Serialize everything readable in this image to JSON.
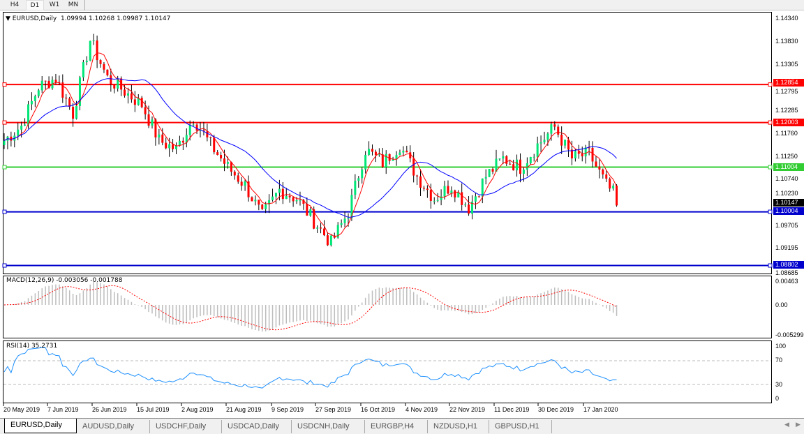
{
  "toolbar": {
    "timeframes": [
      "H4",
      "D1",
      "W1",
      "MN"
    ],
    "active": "D1"
  },
  "main": {
    "symbol": "EURUSD,Daily",
    "ohlc": "1.09994 1.10268 1.09987 1.10147",
    "current_price": "1.10147",
    "price_axis": [
      "1.14340",
      "1.13830",
      "1.13305",
      "1.12795",
      "1.12285",
      "1.11760",
      "1.11250",
      "1.10740",
      "1.10230",
      "1.09705",
      "1.09195",
      "1.08685"
    ],
    "levels": [
      {
        "price": "1.12854",
        "color": "#ff0000"
      },
      {
        "price": "1.12003",
        "color": "#ff0000"
      },
      {
        "price": "1.11004",
        "color": "#32cd32"
      },
      {
        "price": "1.10004",
        "color": "#0000cd"
      },
      {
        "price": "1.08802",
        "color": "#0000cd"
      }
    ],
    "colors": {
      "bull": "#00e676",
      "bear": "#ff0000",
      "ma_fast": "#ff0000",
      "ma_slow": "#0000ff"
    }
  },
  "macd": {
    "title": "MACD(12,26,9) -0.003056 -0.001788",
    "axis": [
      "0.00463",
      "0.00",
      "-0.005299"
    ]
  },
  "rsi": {
    "title": "RSI(14) 35.2731",
    "axis": [
      "100",
      "70",
      "30",
      "0"
    ]
  },
  "dates": [
    "20 May 2019",
    "7 Jun 2019",
    "26 Jun 2019",
    "15 Jul 2019",
    "2 Aug 2019",
    "21 Aug 2019",
    "9 Sep 2019",
    "27 Sep 2019",
    "16 Oct 2019",
    "4 Nov 2019",
    "22 Nov 2019",
    "11 Dec 2019",
    "30 Dec 2019",
    "17 Jan 2020"
  ],
  "tabs": [
    "EURUSD,Daily",
    "AUDUSD,Daily",
    "USDCHF,Daily",
    "USDCAD,Daily",
    "USDCNH,Daily",
    "EURGBP,H4",
    "NZDUSD,H1",
    "GBPUSD,H1"
  ],
  "active_tab": "EURUSD,Daily",
  "chart_data": {
    "type": "candlestick",
    "symbol": "EURUSD",
    "timeframe": "Daily",
    "weekly_closes_from_20_May_2019": [
      1.116,
      1.1193,
      1.128,
      1.13,
      1.122,
      1.1385,
      1.13,
      1.127,
      1.124,
      1.116,
      1.114,
      1.121,
      1.115,
      1.11,
      1.106,
      1.099,
      1.105,
      1.103,
      1.098,
      1.093,
      1.1,
      1.114,
      1.111,
      1.115,
      1.108,
      1.103,
      1.106,
      1.101,
      1.108,
      1.112,
      1.11,
      1.115,
      1.119,
      1.112,
      1.113,
      1.106,
      1.10147
    ],
    "ylim": [
      1.08685,
      1.1434
    ]
  }
}
